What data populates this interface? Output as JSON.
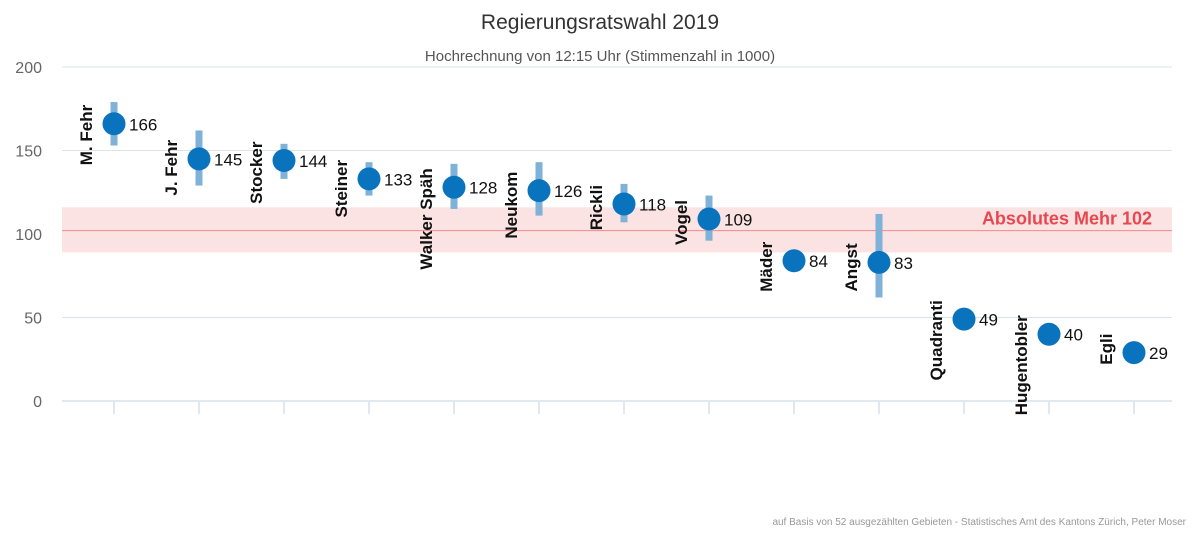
{
  "chart_data": {
    "type": "scatter",
    "title": "Regierungsratswahl 2019",
    "subtitle": "Hochrechnung von 12:15 Uhr (Stimmenzahl in 1000)",
    "ylim": [
      0,
      200
    ],
    "yticks": [
      0,
      50,
      100,
      150,
      200
    ],
    "grid": true,
    "categories": [
      "M. Fehr",
      "J. Fehr",
      "Stocker",
      "Steiner",
      "Walker Späh",
      "Neukom",
      "Rickli",
      "Vogel",
      "Mäder",
      "Angst",
      "Quadranti",
      "Hugentobler",
      "Egli"
    ],
    "values": [
      166,
      145,
      144,
      133,
      128,
      126,
      118,
      109,
      84,
      83,
      49,
      40,
      29
    ],
    "value_labels": [
      "166",
      "145",
      "144",
      "133",
      "128",
      "126",
      "118",
      "109",
      "84",
      "83",
      "49",
      "40",
      "29"
    ],
    "intervals": [
      [
        153,
        179
      ],
      [
        129,
        162
      ],
      [
        133,
        154
      ],
      [
        123,
        143
      ],
      [
        115,
        142
      ],
      [
        111,
        143
      ],
      [
        107,
        130
      ],
      [
        96,
        123
      ],
      [
        null,
        null
      ],
      [
        62,
        112
      ],
      [
        null,
        null
      ],
      [
        null,
        null
      ],
      [
        null,
        null
      ]
    ],
    "threshold": {
      "label": "Absolutes Mehr 102",
      "value": 102,
      "band": [
        89,
        116
      ]
    },
    "source": "auf Basis von 52 ausgezählten Gebieten - Statistisches Amt des Kantons Zürich, Peter Moser"
  },
  "colors": {
    "point": "#0a73bd",
    "interval": "#7fb2d9",
    "band": "#fbe3e3",
    "threshold_line": "#f08a8a",
    "threshold_text": "#e8474f",
    "grid": "#dde3ea",
    "axis": "#c5d2e2"
  }
}
